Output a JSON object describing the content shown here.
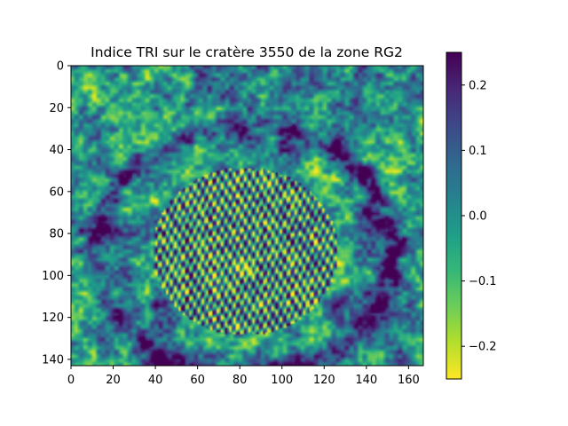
{
  "chart_data": {
    "type": "heatmap",
    "title": "Indice TRI sur le cratère 3550 de la zone RG2",
    "xlabel": "",
    "ylabel": "",
    "xlim": [
      0,
      167
    ],
    "ylim": [
      143,
      0
    ],
    "x_ticks": [
      0,
      20,
      40,
      60,
      80,
      100,
      120,
      140,
      160
    ],
    "y_ticks": [
      0,
      20,
      40,
      60,
      80,
      100,
      120,
      140
    ],
    "colorbar": {
      "colormap": "viridis_r",
      "range": [
        -0.25,
        0.25
      ],
      "ticks": [
        0.2,
        0.1,
        0.0,
        -0.1,
        -0.2
      ],
      "tick_labels": [
        "0.2",
        "0.1",
        "0.0",
        "−0.1",
        "−0.2"
      ]
    },
    "image_size": {
      "columns": 167,
      "rows": 143
    },
    "features": {
      "crater_center": [
        82,
        88
      ],
      "inner_textured_radius": [
        44,
        40
      ],
      "dark_rim_radius": [
        70,
        60
      ],
      "bright_spot": [
        82,
        96
      ]
    },
    "grid": false
  }
}
